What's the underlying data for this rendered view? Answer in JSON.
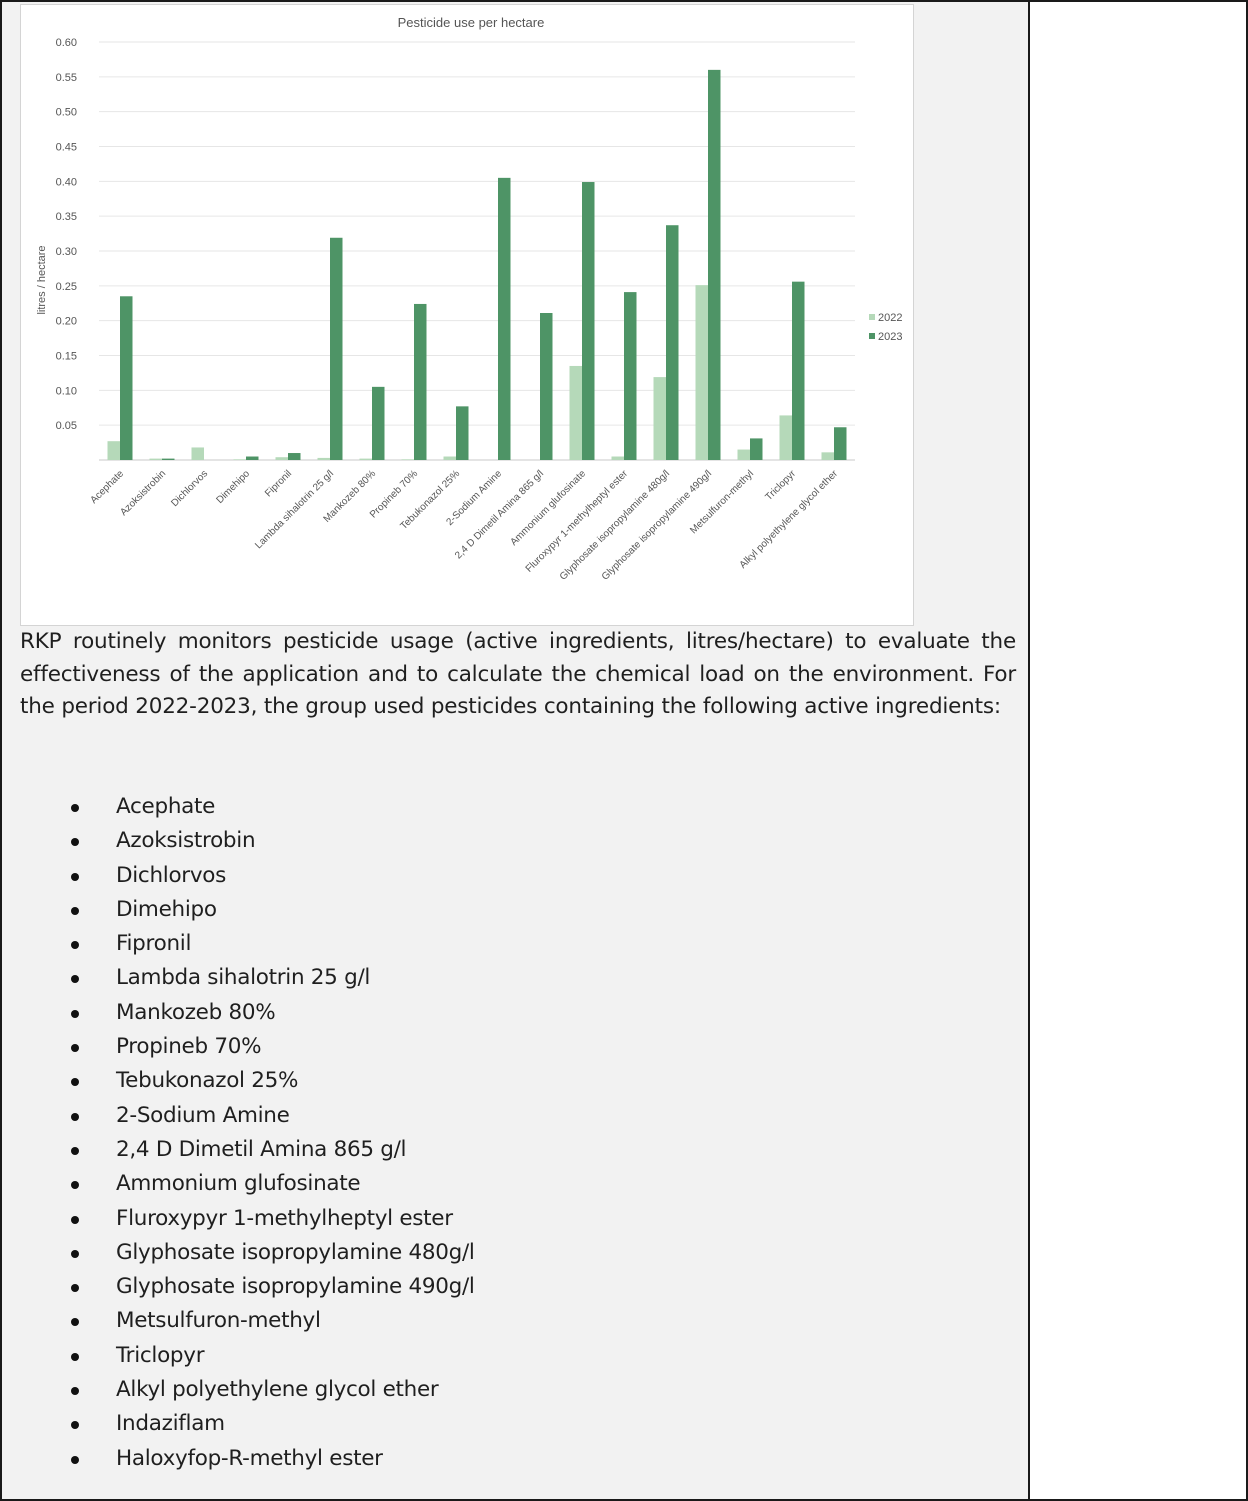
{
  "chart_data": {
    "type": "bar",
    "title": "Pesticide use per hectare",
    "xlabel": "",
    "ylabel": "litres / hectare",
    "ylim": [
      0,
      0.6
    ],
    "yticks": [
      "",
      "0.05",
      "0.10",
      "0.15",
      "0.20",
      "0.25",
      "0.30",
      "0.35",
      "0.40",
      "0.45",
      "0.50",
      "0.55",
      "0.60"
    ],
    "grid": true,
    "legend": "right",
    "categories": [
      "Acephate",
      "Azoksistrobin",
      "Dichlorvos",
      "Dimehipo",
      "Fipronil",
      "Lambda sihalotrin 25 g/l",
      "Mankozeb 80%",
      "Propineb 70%",
      "Tebukonazol 25%",
      "2-Sodium Amine",
      "2,4 D Dimetil Amina 865 g/l",
      "Ammonium glufosinate",
      "Fluroxypyr 1-methylheptyl ester",
      "Glyphosate isopropylamine 480g/l",
      "Glyphosate isopropylamine 490g/l",
      "Metsulfuron-methyl",
      "Triclopyr",
      "Alkyl polyethylene glycol ether"
    ],
    "series": [
      {
        "name": "2022",
        "color": "#b5d9b9",
        "values": [
          0.027,
          0.002,
          0.018,
          0.001,
          0.004,
          0.003,
          0.002,
          0.001,
          0.005,
          0.0,
          0.0,
          0.135,
          0.005,
          0.119,
          0.251,
          0.015,
          0.064,
          0.011
        ]
      },
      {
        "name": "2023",
        "color": "#4e9466",
        "values": [
          0.235,
          0.002,
          0.0,
          0.005,
          0.01,
          0.319,
          0.105,
          0.224,
          0.077,
          0.405,
          0.211,
          0.399,
          0.241,
          0.337,
          0.56,
          0.031,
          0.256,
          0.047
        ]
      }
    ]
  },
  "paragraph": "RKP routinely monitors pesticide usage (active ingredients, litres/hectare) to evaluate the effectiveness of the application and to calculate the chemical load on the environment. For the period 2022-2023, the group used pesticides containing the following active ingredients:",
  "ingredients": [
    "Acephate",
    "Azoksistrobin",
    "Dichlorvos",
    "Dimehipo",
    "Fipronil",
    "Lambda sihalotrin 25 g/l",
    "Mankozeb 80%",
    "Propineb 70%",
    "Tebukonazol 25%",
    "2-Sodium Amine",
    "2,4 D Dimetil Amina 865 g/l",
    "Ammonium glufosinate",
    "Fluroxypyr 1-methylheptyl ester",
    "Glyphosate isopropylamine 480g/l",
    "Glyphosate isopropylamine 490g/l",
    "Metsulfuron-methyl",
    "Triclopyr",
    "Alkyl polyethylene glycol ether",
    "Indaziflam",
    "Haloxyfop-R-methyl ester"
  ]
}
